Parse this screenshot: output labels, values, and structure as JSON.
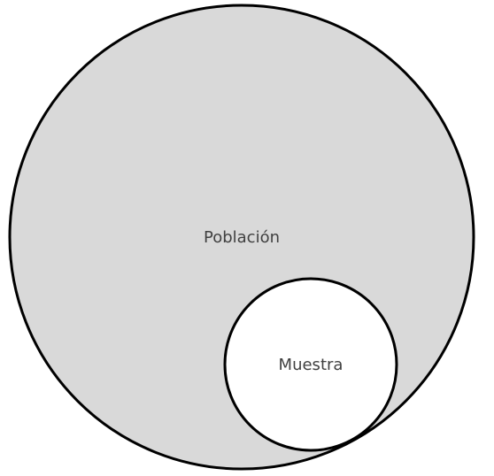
{
  "diagram": {
    "population": {
      "label": "Población",
      "fill": "#d9d9d9",
      "stroke": "#000000"
    },
    "sample": {
      "label": "Muestra",
      "fill": "#ffffff",
      "stroke": "#000000"
    },
    "text_color": "#404040"
  }
}
